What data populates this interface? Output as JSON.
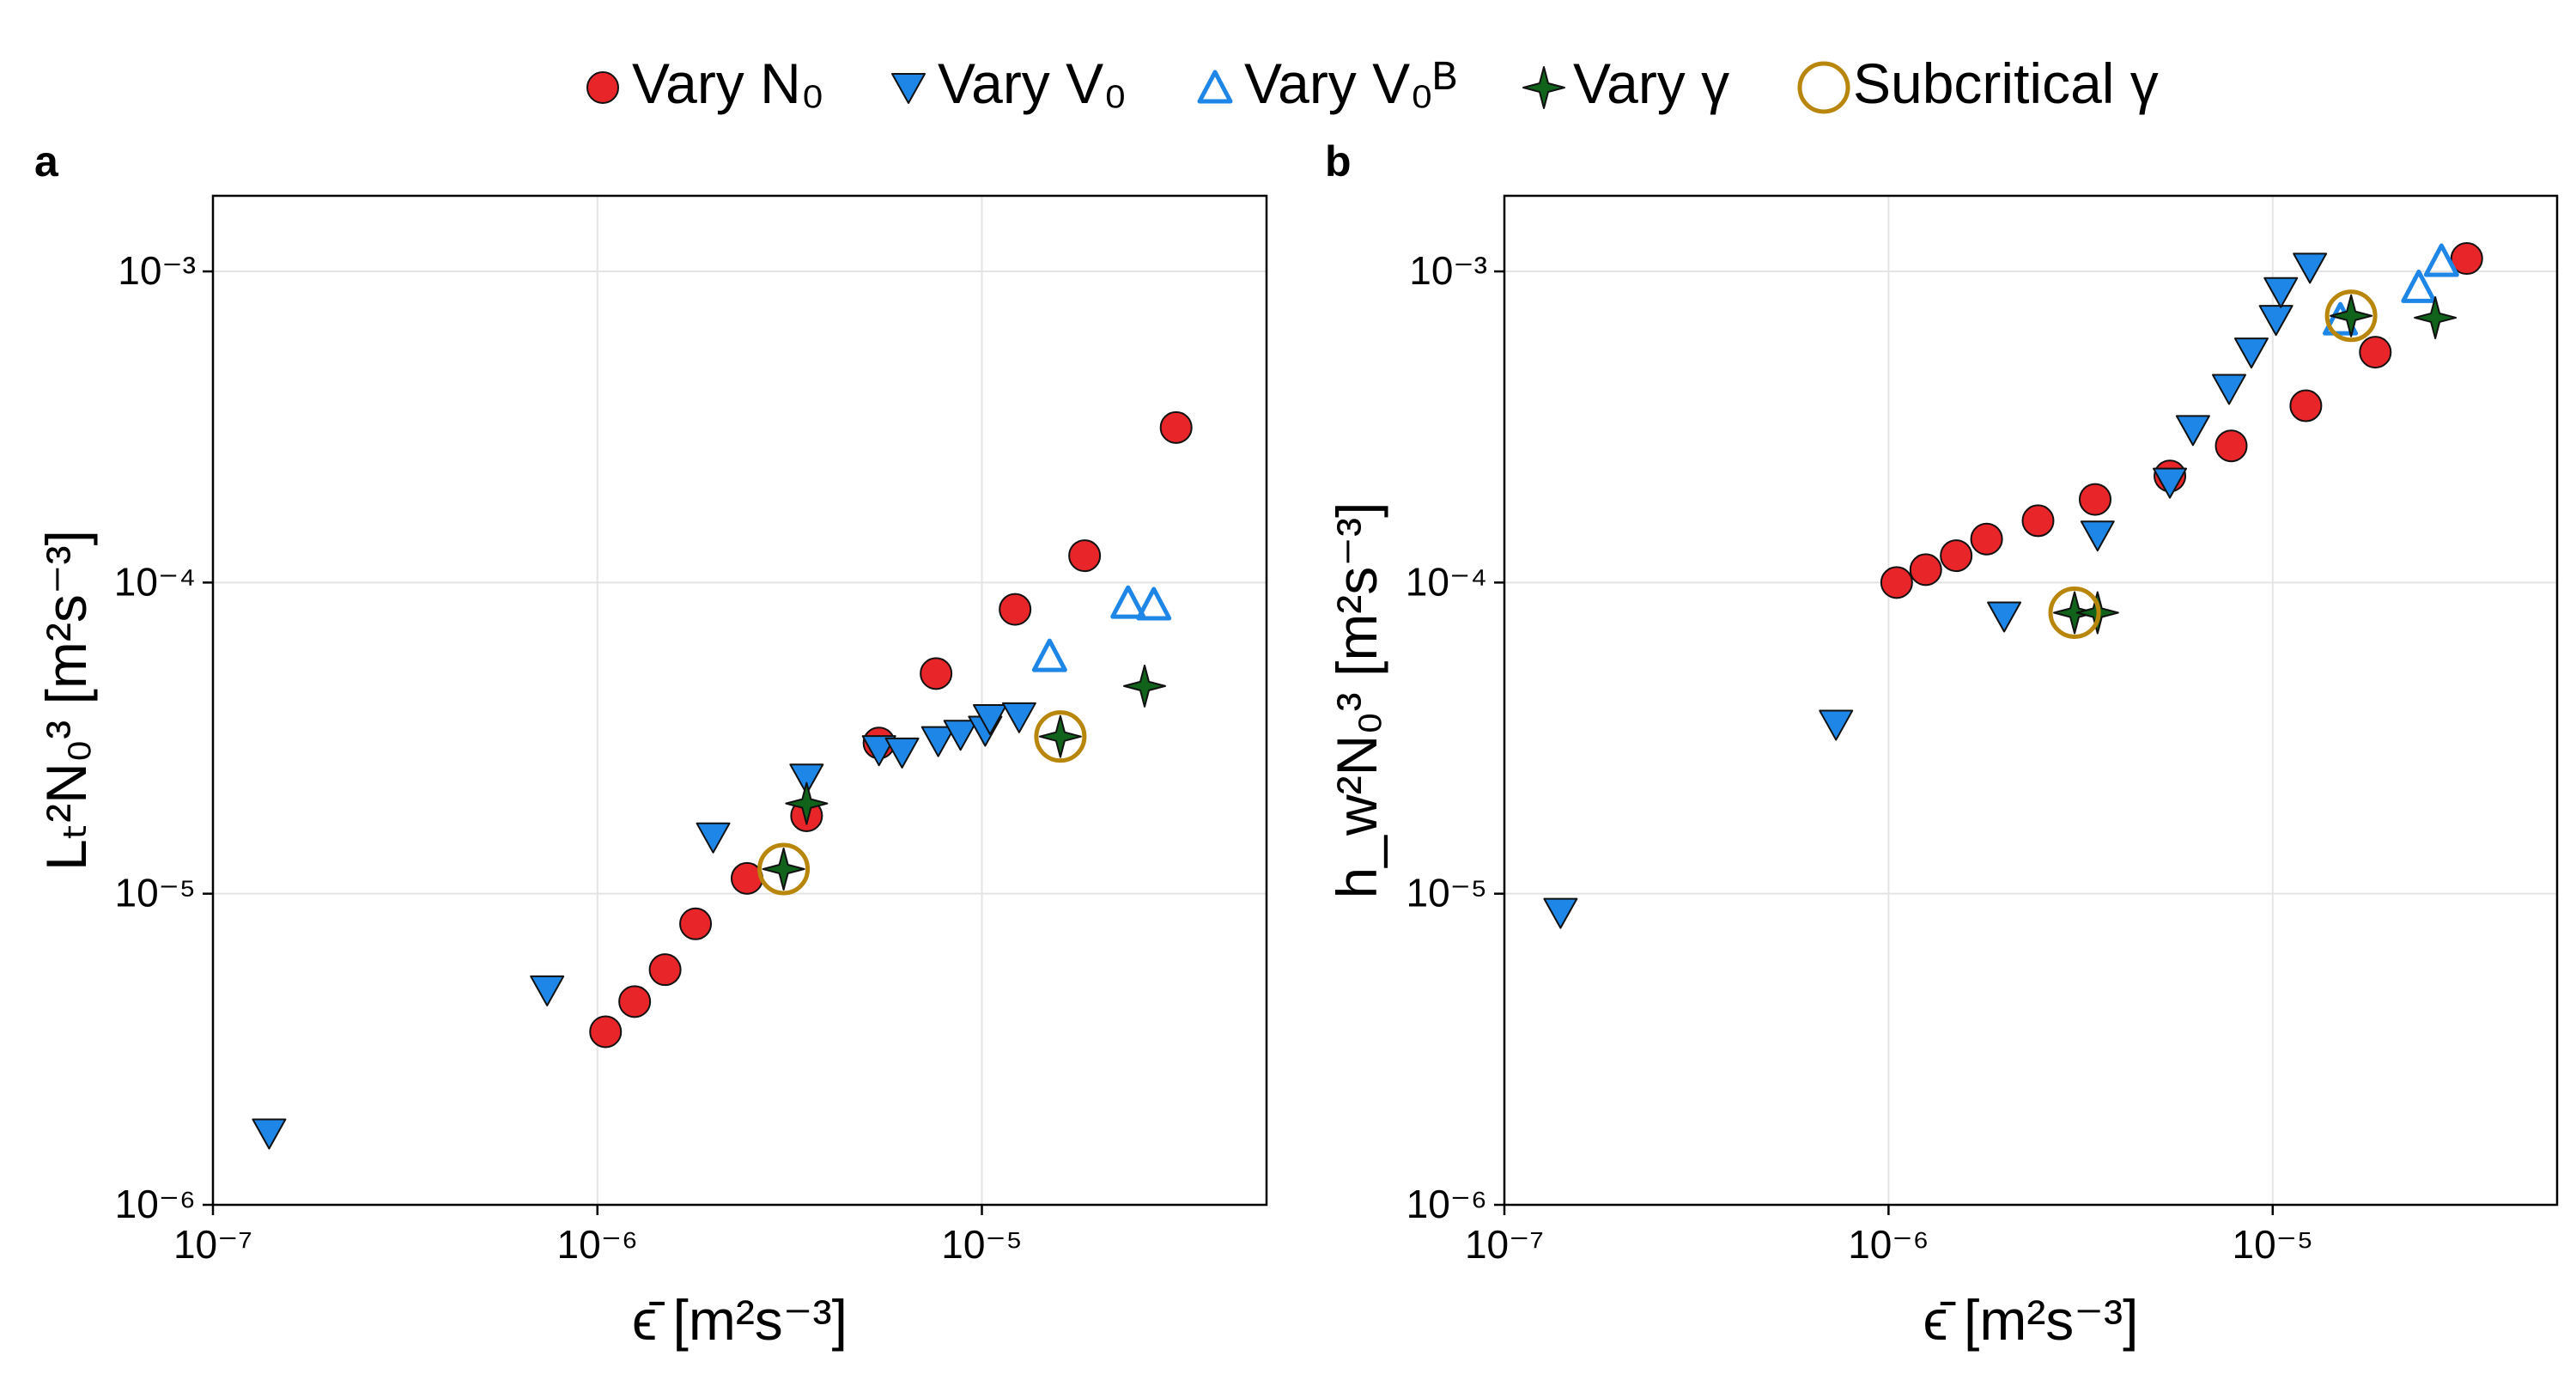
{
  "legend": {
    "position": "top",
    "items": [
      {
        "label": "Vary N₀",
        "marker": "circle"
      },
      {
        "label": "Vary V₀",
        "marker": "triangle-down"
      },
      {
        "label": "Vary V₀ᴮ",
        "marker": "triangle-up-open"
      },
      {
        "label": "Vary γ",
        "marker": "star4"
      },
      {
        "label": "Subcritical γ",
        "marker": "circle-open"
      }
    ]
  },
  "colors": {
    "vary_n0": "#e8262a",
    "vary_v0": "#1e86e6",
    "vary_v0b": "#1e86e6",
    "vary_gamma": "#11631b",
    "subcritical": "#b8860b",
    "grid": "#e4e4e4"
  },
  "chart_data": [
    {
      "type": "scatter",
      "panel_label": "a",
      "xlabel": "ϵ̄ [m²s⁻³]",
      "ylabel": "Lₜ²N₀³ [m²s⁻³]",
      "xscale": "log",
      "yscale": "log",
      "xlim": [
        1e-07,
        5.5e-05
      ],
      "ylim": [
        1e-06,
        0.00175
      ],
      "x_ticks": [
        {
          "value": 1e-07,
          "label": "10⁻⁷"
        },
        {
          "value": 1e-06,
          "label": "10⁻⁶"
        },
        {
          "value": 1e-05,
          "label": "10⁻⁵"
        }
      ],
      "y_ticks": [
        {
          "value": 1e-06,
          "label": "10⁻⁶"
        },
        {
          "value": 1e-05,
          "label": "10⁻⁵"
        },
        {
          "value": 0.0001,
          "label": "10⁻⁴"
        },
        {
          "value": 0.001,
          "label": "10⁻³"
        }
      ],
      "grid": true,
      "series": [
        {
          "name": "Vary N₀",
          "points": [
            [
              1.05e-06,
              3.6e-06
            ],
            [
              1.25e-06,
              4.5e-06
            ],
            [
              1.5e-06,
              5.7e-06
            ],
            [
              1.8e-06,
              8e-06
            ],
            [
              2.45e-06,
              1.12e-05
            ],
            [
              3.5e-06,
              1.78e-05
            ],
            [
              5.4e-06,
              3.05e-05
            ],
            [
              7.6e-06,
              5.1e-05
            ],
            [
              1.22e-05,
              8.2e-05
            ],
            [
              1.85e-05,
              0.000122
            ],
            [
              3.2e-05,
              0.000315
            ]
          ]
        },
        {
          "name": "Vary V₀",
          "points": [
            [
              1.4e-07,
              1.7e-06
            ],
            [
              7.4e-07,
              4.9e-06
            ],
            [
              2e-06,
              1.52e-05
            ],
            [
              3.5e-06,
              2.35e-05
            ],
            [
              5.4e-06,
              2.9e-05
            ],
            [
              6.2e-06,
              2.85e-05
            ],
            [
              7.7e-06,
              3.1e-05
            ],
            [
              8.8e-06,
              3.25e-05
            ],
            [
              1.02e-05,
              3.35e-05
            ],
            [
              1.05e-05,
              3.65e-05
            ],
            [
              1.25e-05,
              3.7e-05
            ]
          ]
        },
        {
          "name": "Vary V₀ᴮ",
          "points": [
            [
              1.5e-05,
              5.8e-05
            ],
            [
              2.4e-05,
              8.6e-05
            ],
            [
              2.8e-05,
              8.5e-05
            ]
          ]
        },
        {
          "name": "Vary γ",
          "points": [
            [
              3.05e-06,
              1.2e-05
            ],
            [
              3.5e-06,
              1.95e-05
            ],
            [
              1.6e-05,
              3.2e-05
            ],
            [
              2.65e-05,
              4.65e-05
            ]
          ]
        },
        {
          "name": "Subcritical γ",
          "points": [
            [
              3.05e-06,
              1.2e-05
            ],
            [
              1.6e-05,
              3.2e-05
            ]
          ]
        }
      ]
    },
    {
      "type": "scatter",
      "panel_label": "b",
      "xlabel": "ϵ̄ [m²s⁻³]",
      "ylabel": "h_w²N₀³ [m²s⁻³]",
      "xscale": "log",
      "yscale": "log",
      "xlim": [
        1e-07,
        5.5e-05
      ],
      "ylim": [
        1e-06,
        0.00175
      ],
      "x_ticks": [
        {
          "value": 1e-07,
          "label": "10⁻⁷"
        },
        {
          "value": 1e-06,
          "label": "10⁻⁶"
        },
        {
          "value": 1e-05,
          "label": "10⁻⁵"
        }
      ],
      "y_ticks": [
        {
          "value": 1e-06,
          "label": "10⁻⁶"
        },
        {
          "value": 1e-05,
          "label": "10⁻⁵"
        },
        {
          "value": 0.0001,
          "label": "10⁻⁴"
        },
        {
          "value": 0.001,
          "label": "10⁻³"
        }
      ],
      "grid": true,
      "series": [
        {
          "name": "Vary N₀",
          "points": [
            [
              1.05e-06,
              0.0001
            ],
            [
              1.25e-06,
              0.00011
            ],
            [
              1.5e-06,
              0.000122
            ],
            [
              1.8e-06,
              0.000138
            ],
            [
              2.45e-06,
              0.000158
            ],
            [
              3.45e-06,
              0.000185
            ],
            [
              5.4e-06,
              0.00022
            ],
            [
              7.8e-06,
              0.000275
            ],
            [
              1.22e-05,
              0.00037
            ],
            [
              1.85e-05,
              0.00055
            ],
            [
              3.2e-05,
              0.0011
            ]
          ]
        },
        {
          "name": "Vary V₀",
          "points": [
            [
              1.4e-07,
              8.7e-06
            ],
            [
              7.3e-07,
              3.5e-05
            ],
            [
              2e-06,
              7.8e-05
            ],
            [
              3.5e-06,
              0.000142
            ],
            [
              5.4e-06,
              0.00021
            ],
            [
              6.2e-06,
              0.00031
            ],
            [
              7.7e-06,
              0.00042
            ],
            [
              8.8e-06,
              0.00055
            ],
            [
              1.02e-05,
              0.0007
            ],
            [
              1.05e-05,
              0.00086
            ],
            [
              1.25e-05,
              0.00103
            ]
          ]
        },
        {
          "name": "Vary V₀ᴮ",
          "points": [
            [
              1.5e-05,
              0.0007
            ],
            [
              2.4e-05,
              0.00089
            ],
            [
              2.75e-05,
              0.00108
            ]
          ]
        },
        {
          "name": "Vary γ",
          "points": [
            [
              3.05e-06,
              8e-05
            ],
            [
              3.5e-06,
              8e-05
            ],
            [
              1.6e-05,
              0.00072
            ],
            [
              2.65e-05,
              0.00071
            ]
          ]
        },
        {
          "name": "Subcritical γ",
          "points": [
            [
              3.05e-06,
              8e-05
            ],
            [
              1.6e-05,
              0.00072
            ]
          ]
        }
      ]
    }
  ]
}
